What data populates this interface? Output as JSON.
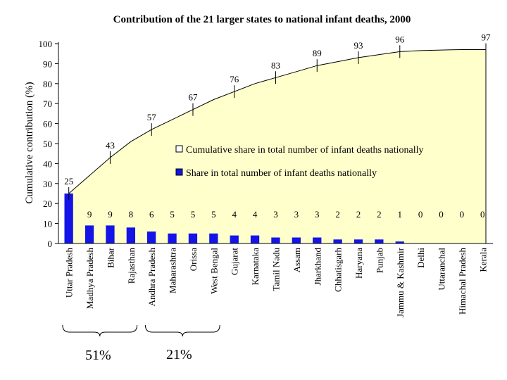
{
  "chart_data": {
    "type": "bar+area",
    "title": "Contribution of the 21 larger states to national infant deaths, 2000",
    "ylabel": "Cumulative contribution (%)",
    "ylim": [
      0,
      100
    ],
    "yticks": [
      0,
      10,
      20,
      30,
      40,
      50,
      60,
      70,
      80,
      90,
      100
    ],
    "categories": [
      "Uttar Pradesh",
      "Madhya Pradesh",
      "Bihar",
      "Rajasthan",
      "Andhra Pradesh",
      "Maharashtra",
      "Orissa",
      "West Bengal",
      "Gujarat",
      "Karnataka",
      "Tamil Nadu",
      "Assam",
      "Jharkhand",
      "Chhatisgarh",
      "Haryana",
      "Punjab",
      "Jammu & Kashmir",
      "Delhi",
      "Uttaranchal",
      "Himachal Pradesh",
      "Kerala"
    ],
    "series": [
      {
        "name": "Share in total number of infant deaths nationally",
        "type": "bar",
        "color": "#1414e6",
        "values": [
          25,
          9,
          9,
          8,
          6,
          5,
          5,
          5,
          4,
          4,
          3,
          3,
          3,
          2,
          2,
          2,
          1,
          0,
          0,
          0,
          0
        ]
      },
      {
        "name": "Cumulative share in total number of infant deaths nationally",
        "type": "area",
        "color": "#ffffcc",
        "values": [
          25,
          34,
          43,
          51,
          57,
          62,
          67,
          72,
          76,
          80,
          83,
          86,
          89,
          91,
          93,
          94.5,
          96,
          96.5,
          96.8,
          97,
          97
        ],
        "labels": [
          {
            "index": 0,
            "text": "25"
          },
          {
            "index": 2,
            "text": "43"
          },
          {
            "index": 4,
            "text": "57"
          },
          {
            "index": 6,
            "text": "67"
          },
          {
            "index": 8,
            "text": "76"
          },
          {
            "index": 10,
            "text": "83"
          },
          {
            "index": 12,
            "text": "89"
          },
          {
            "index": 14,
            "text": "93"
          },
          {
            "index": 16,
            "text": "96"
          },
          {
            "index": 20,
            "text": "97"
          }
        ]
      }
    ],
    "bar_value_labels": [
      "",
      "9",
      "9",
      "8",
      "6",
      "5",
      "5",
      "5",
      "4",
      "4",
      "3",
      "3",
      "3",
      "2",
      "2",
      "2",
      "1",
      "0",
      "0",
      "0",
      "0"
    ],
    "legend": {
      "position": "center-right"
    },
    "groups": [
      {
        "label": "51%",
        "from": 0,
        "to": 3
      },
      {
        "label": "21%",
        "from": 4,
        "to": 7
      }
    ]
  }
}
